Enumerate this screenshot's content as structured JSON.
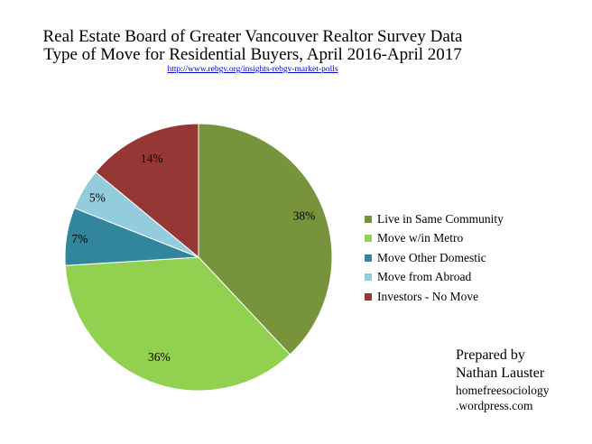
{
  "chart_data": {
    "type": "pie",
    "title": "Real Estate Board of Greater Vancouver Realtor Survey Data",
    "subtitle": "Type of Move for Residential Buyers, April 2016-April 2017",
    "source": "http://www.rebgv.org/insights-rebgv-market-polls",
    "categories": [
      "Live in Same Community",
      "Move w/in Metro",
      "Move Other Domestic",
      "Move from Abroad",
      "Investors - No Move"
    ],
    "values": [
      38,
      36,
      7,
      5,
      14
    ],
    "data_labels": [
      "38%",
      "36%",
      "7%",
      "5%",
      "14%"
    ],
    "colors": [
      "#77933c",
      "#92d050",
      "#31859c",
      "#93cddd",
      "#953735"
    ],
    "legend_position": "right"
  },
  "credit": {
    "line1": "Prepared by",
    "line2": "Nathan Lauster",
    "line3": "homefreesociology",
    "line4": ".wordpress.com"
  }
}
